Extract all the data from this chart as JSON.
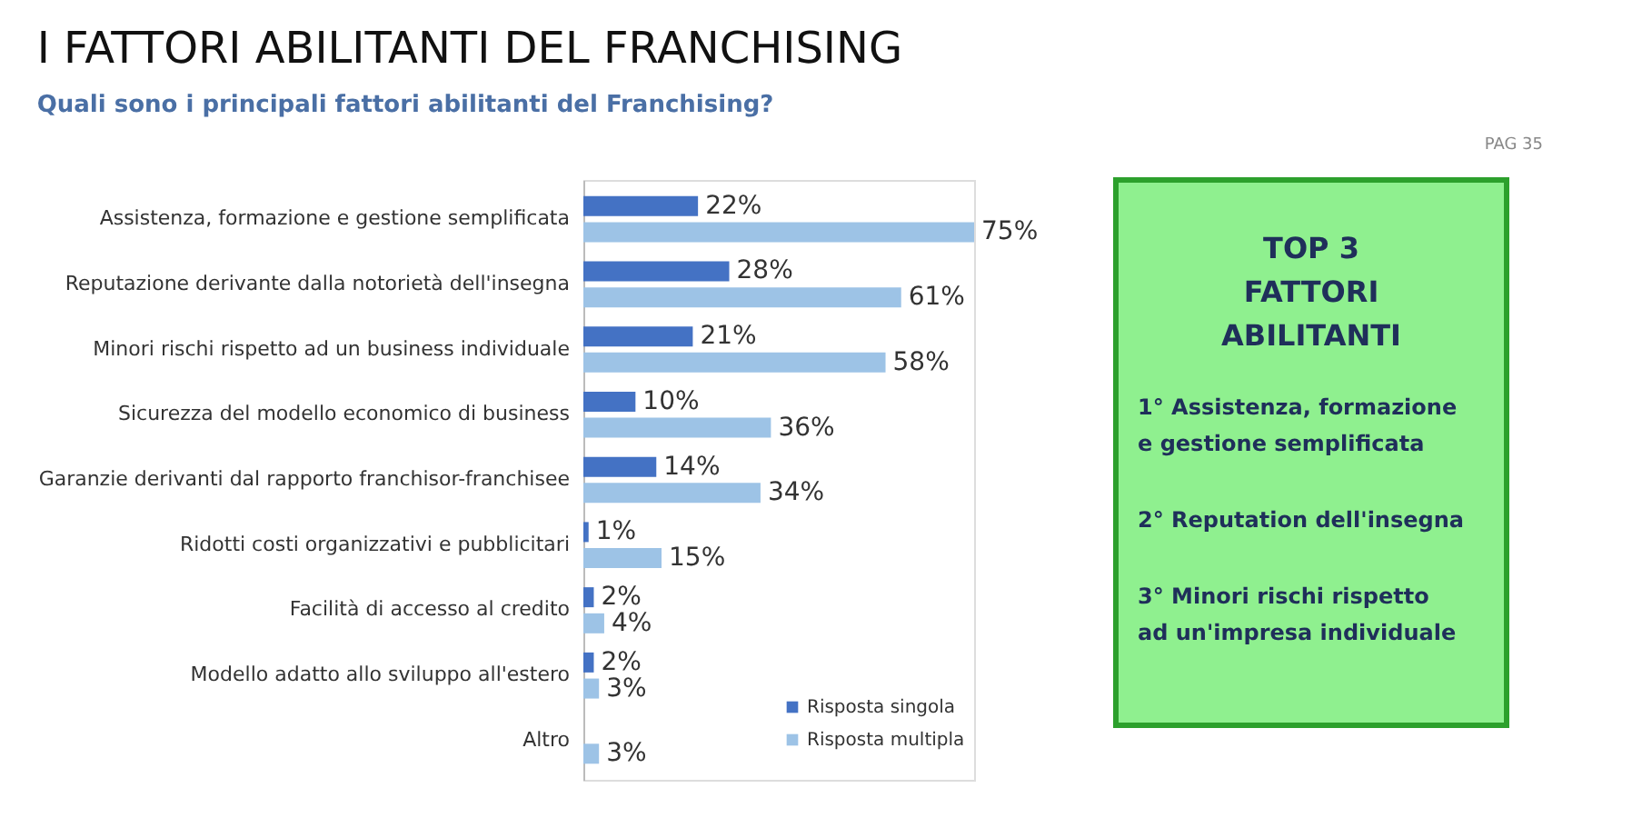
{
  "chart_data": [
    {
      "type": "bar",
      "orientation": "horizontal",
      "title": "I FATTORI ABILITANTI DEL FRANCHISING",
      "subtitle": "Quali sono i principali fattori abilitanti del Franchising?",
      "categories": [
        "Assistenza, formazione e gestione semplificata",
        "Reputazione derivante dalla notorietà dell'insegna",
        "Minori rischi rispetto ad un business individuale",
        "Sicurezza del modello economico di business",
        "Garanzie derivanti dal rapporto franchisor-franchisee",
        "Ridotti costi organizzativi e pubblicitari",
        "Facilità di accesso al credito",
        "Modello adatto allo sviluppo all'estero",
        "Altro"
      ],
      "series": [
        {
          "name": "Risposta singola",
          "color": "#4472c4",
          "values": [
            22,
            28,
            21,
            10,
            14,
            1,
            2,
            2,
            null
          ],
          "value_labels": [
            "22%",
            "28%",
            "21%",
            "10%",
            "14%",
            "1%",
            "2%",
            "2%",
            null
          ]
        },
        {
          "name": "Risposta multipla",
          "color": "#9dc3e6",
          "values": [
            75,
            61,
            58,
            36,
            34,
            15,
            4,
            3,
            3
          ],
          "value_labels": [
            "75%",
            "61%",
            "58%",
            "36%",
            "34%",
            "15%",
            "4%",
            "3%",
            "3%"
          ]
        }
      ],
      "legend": "bottom right",
      "annotations": [
        "PAG 35"
      ]
    },
    {
      "type": "other",
      "title": "TOP 3 FATTORI ABILITANTI",
      "annotations": [
        "1° Assistenza, formazione e gestione semplificata",
        "2° Reputation dell'insegna",
        "3° Minori rischi rispetto ad un'impresa individuale"
      ]
    }
  ]
}
